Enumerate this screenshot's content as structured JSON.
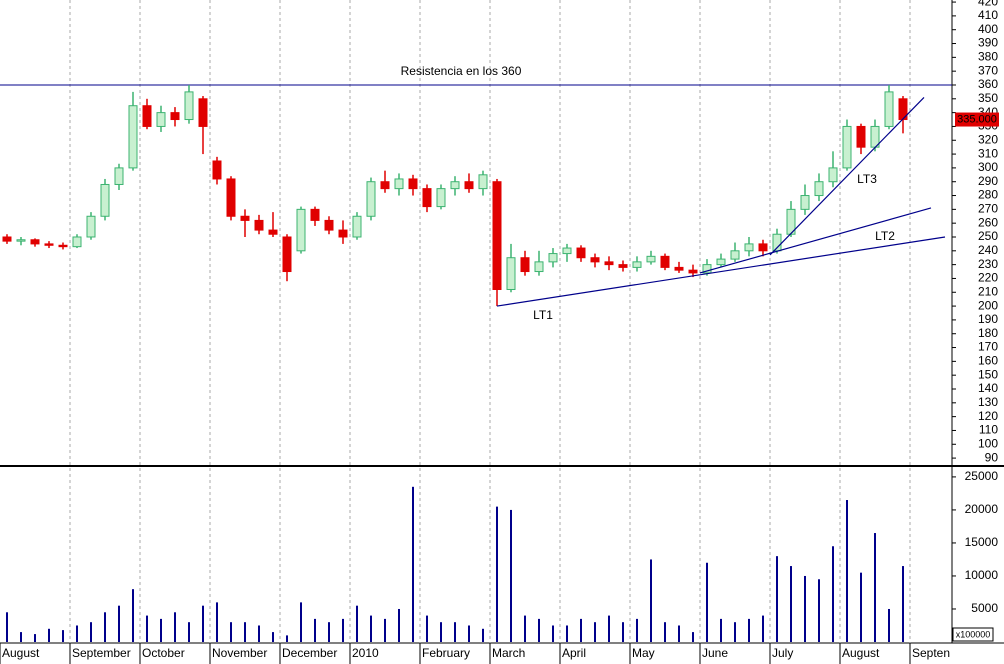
{
  "chart_data": {
    "type": "candlestick",
    "categories": [
      "August",
      null,
      null,
      null,
      null,
      "September",
      null,
      null,
      null,
      null,
      "October",
      null,
      null,
      null,
      null,
      "November",
      null,
      null,
      null,
      null,
      "December",
      null,
      null,
      null,
      null,
      "2010",
      null,
      null,
      null,
      null,
      "February",
      null,
      null,
      null,
      null,
      "March",
      null,
      null,
      null,
      null,
      "April",
      null,
      null,
      null,
      null,
      "May",
      null,
      null,
      null,
      null,
      "June",
      null,
      null,
      null,
      null,
      "July",
      null,
      null,
      null,
      null,
      "August",
      null,
      null,
      null,
      null,
      "Septen"
    ],
    "ohlc": [
      [
        250,
        252,
        245,
        247
      ],
      [
        247,
        250,
        244,
        248
      ],
      [
        248,
        249,
        243,
        245
      ],
      [
        245,
        247,
        242,
        244
      ],
      [
        244,
        246,
        241,
        243
      ],
      [
        243,
        252,
        242,
        250
      ],
      [
        250,
        268,
        248,
        265
      ],
      [
        265,
        292,
        262,
        288
      ],
      [
        288,
        303,
        284,
        300
      ],
      [
        300,
        355,
        298,
        345
      ],
      [
        345,
        350,
        328,
        330
      ],
      [
        330,
        345,
        326,
        340
      ],
      [
        340,
        344,
        330,
        335
      ],
      [
        335,
        360,
        332,
        355
      ],
      [
        350,
        352,
        310,
        330
      ],
      [
        305,
        308,
        288,
        292
      ],
      [
        292,
        294,
        262,
        265
      ],
      [
        265,
        270,
        250,
        262
      ],
      [
        262,
        266,
        252,
        255
      ],
      [
        255,
        268,
        250,
        252
      ],
      [
        250,
        252,
        218,
        225
      ],
      [
        240,
        272,
        238,
        270
      ],
      [
        270,
        272,
        258,
        262
      ],
      [
        262,
        265,
        252,
        255
      ],
      [
        255,
        262,
        245,
        250
      ],
      [
        250,
        268,
        248,
        265
      ],
      [
        265,
        293,
        262,
        290
      ],
      [
        290,
        298,
        282,
        285
      ],
      [
        285,
        296,
        280,
        292
      ],
      [
        292,
        295,
        280,
        285
      ],
      [
        285,
        288,
        268,
        272
      ],
      [
        272,
        288,
        270,
        285
      ],
      [
        285,
        294,
        280,
        290
      ],
      [
        290,
        296,
        282,
        285
      ],
      [
        285,
        298,
        280,
        295
      ],
      [
        290,
        292,
        200,
        212
      ],
      [
        212,
        245,
        210,
        235
      ],
      [
        235,
        240,
        222,
        225
      ],
      [
        225,
        240,
        222,
        232
      ],
      [
        232,
        242,
        228,
        238
      ],
      [
        238,
        245,
        232,
        242
      ],
      [
        242,
        244,
        232,
        235
      ],
      [
        235,
        238,
        228,
        232
      ],
      [
        232,
        236,
        226,
        230
      ],
      [
        230,
        233,
        225,
        228
      ],
      [
        228,
        236,
        225,
        232
      ],
      [
        232,
        240,
        230,
        236
      ],
      [
        236,
        238,
        226,
        228
      ],
      [
        228,
        232,
        224,
        226
      ],
      [
        226,
        230,
        221,
        224
      ],
      [
        224,
        234,
        222,
        230
      ],
      [
        230,
        238,
        228,
        234
      ],
      [
        234,
        246,
        232,
        240
      ],
      [
        240,
        250,
        236,
        245
      ],
      [
        245,
        248,
        236,
        240
      ],
      [
        240,
        256,
        238,
        252
      ],
      [
        252,
        276,
        250,
        270
      ],
      [
        270,
        288,
        266,
        280
      ],
      [
        280,
        296,
        276,
        290
      ],
      [
        290,
        312,
        286,
        300
      ],
      [
        300,
        335,
        298,
        330
      ],
      [
        330,
        332,
        310,
        315
      ],
      [
        315,
        335,
        312,
        330
      ],
      [
        330,
        360,
        328,
        355
      ],
      [
        350,
        352,
        325,
        335
      ],
      null
    ],
    "up_color": "#3cb371",
    "down_color": "#e00000",
    "ylim": [
      85,
      421.5
    ],
    "yticks": [
      90,
      100,
      110,
      120,
      130,
      140,
      150,
      160,
      170,
      180,
      190,
      200,
      210,
      220,
      230,
      240,
      250,
      260,
      270,
      280,
      290,
      300,
      310,
      320,
      330,
      340,
      350,
      360,
      370,
      380,
      390,
      400,
      410,
      420
    ],
    "last_price": {
      "value": 335,
      "label": "335.000"
    },
    "resistance": {
      "value": 360,
      "label": "Resistencia en los 360"
    },
    "trend_lines": [
      {
        "label": "LT1",
        "points": [
          [
            35,
            200
          ],
          [
            67,
            250
          ]
        ]
      },
      {
        "label": "LT2",
        "points": [
          [
            49.5,
            224
          ],
          [
            66,
            271
          ]
        ]
      },
      {
        "label": "LT3",
        "points": [
          [
            54.5,
            237
          ],
          [
            65.5,
            351
          ]
        ]
      }
    ],
    "line_color": "#00008b",
    "volume": [
      4500,
      1500,
      1200,
      2000,
      1800,
      2500,
      3000,
      4500,
      5500,
      8000,
      4000,
      3500,
      4500,
      3000,
      5500,
      6000,
      3000,
      3000,
      2500,
      1500,
      1000,
      6000,
      3500,
      3000,
      3500,
      5500,
      4000,
      3500,
      5000,
      23500,
      4000,
      3000,
      3000,
      2500,
      2000,
      20500,
      20000,
      4000,
      3500,
      2500,
      2500,
      3500,
      3000,
      4000,
      3000,
      3500,
      12500,
      3000,
      2500,
      1500,
      12000,
      3500,
      3000,
      3500,
      4000,
      13000,
      11500,
      10000,
      9500,
      14500,
      21500,
      10500,
      16500,
      5000,
      11500,
      null
    ],
    "volume_color": "#00008b",
    "volume_ylim": [
      0,
      26500
    ],
    "volume_yticks": [
      5000,
      10000,
      15000,
      20000,
      25000
    ],
    "volume_unit": "x100000"
  }
}
